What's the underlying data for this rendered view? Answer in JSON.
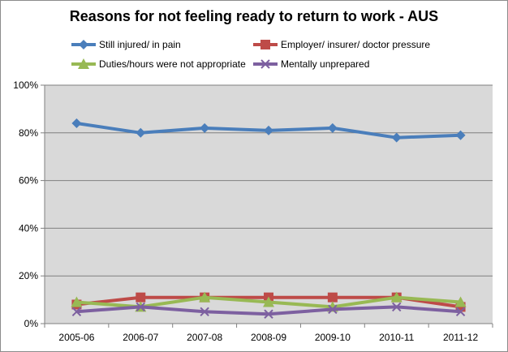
{
  "chart_data": {
    "type": "line",
    "title": "Reasons for not feeling ready to return to work - AUS",
    "categories": [
      "2005-06",
      "2006-07",
      "2007-08",
      "2008-09",
      "2009-10",
      "2010-11",
      "2011-12"
    ],
    "y_ticks": [
      "0%",
      "20%",
      "40%",
      "60%",
      "80%",
      "100%"
    ],
    "ylim": [
      0,
      100
    ],
    "grid": true,
    "legend_position": "top",
    "series": [
      {
        "name": "Still injured/ in pain",
        "color": "#4a7ebb",
        "marker": "diamond",
        "values": [
          84,
          80,
          82,
          81,
          82,
          78,
          79
        ]
      },
      {
        "name": "Employer/ insurer/ doctor pressure",
        "color": "#be4b48",
        "marker": "square",
        "values": [
          8,
          11,
          11,
          11,
          11,
          11,
          7
        ]
      },
      {
        "name": "Duties/hours were not appropriate",
        "color": "#98b954",
        "marker": "triangle",
        "values": [
          9,
          7,
          11,
          9,
          7,
          11,
          9
        ]
      },
      {
        "name": "Mentally unprepared",
        "color": "#7d60a0",
        "marker": "x",
        "values": [
          5,
          7,
          5,
          4,
          6,
          7,
          5
        ]
      }
    ]
  }
}
